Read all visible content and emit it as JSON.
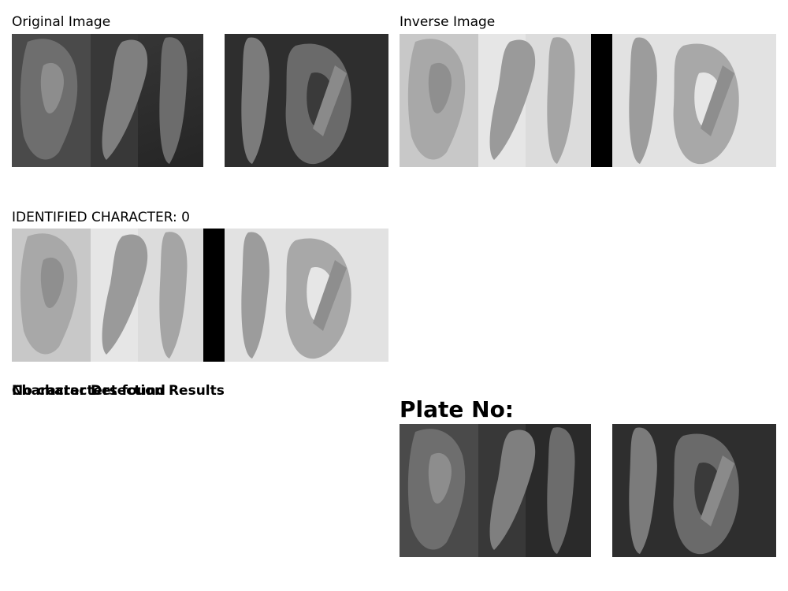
{
  "panels": {
    "original": {
      "title": "Original Image"
    },
    "inverse": {
      "title": "Inverse Image"
    },
    "identified": {
      "title": "IDENTIFIED CHARACTER: 0"
    },
    "detection": {
      "title": "Character Detection Results",
      "overlay_text": "No characters found"
    },
    "plate": {
      "title": "Plate No:"
    }
  },
  "image_tones": {
    "dark_bg": "#2a2a2a",
    "dark_mid": "#555555",
    "dark_glyph": "#8a8a8a",
    "light_bg": "#e4e4e4",
    "light_mid": "#b5b5b5",
    "light_glyph": "#8c8c8c",
    "separator_dark": "#ffffff",
    "separator_light": "#000000"
  }
}
